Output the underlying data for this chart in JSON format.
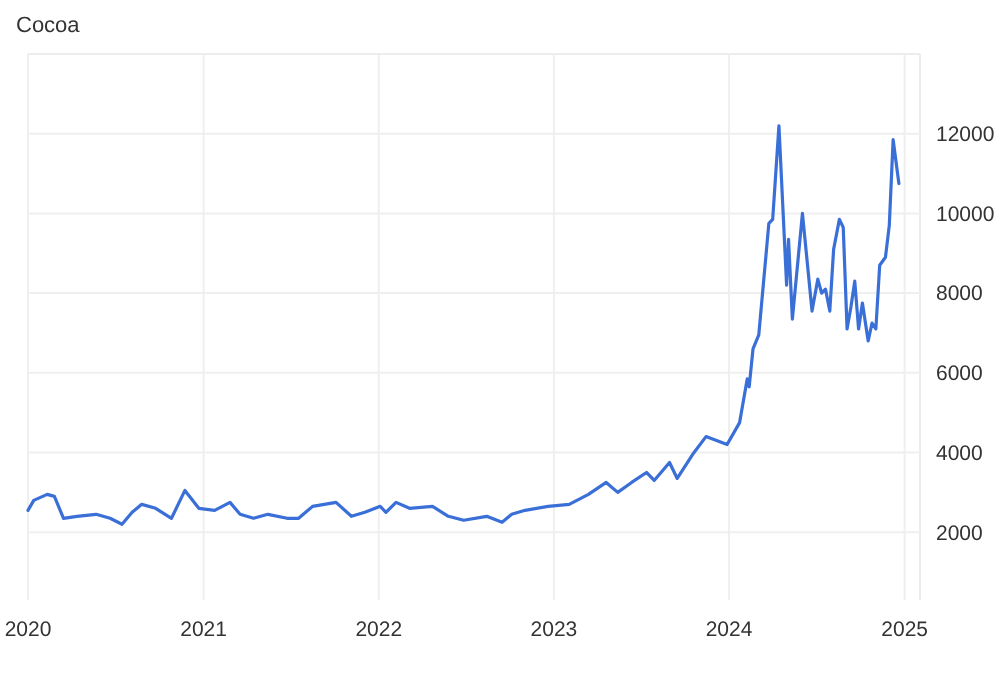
{
  "chart_data": {
    "type": "line",
    "title": "Cocoa",
    "x": [
      "2020-01-01",
      "2020-01-13",
      "2020-02-10",
      "2020-02-25",
      "2020-03-15",
      "2020-04-12",
      "2020-05-22",
      "2020-06-20",
      "2020-07-15",
      "2020-08-05",
      "2020-08-25",
      "2020-09-23",
      "2020-10-26",
      "2020-11-23",
      "2020-12-22",
      "2021-01-24",
      "2021-02-25",
      "2021-03-18",
      "2021-04-15",
      "2021-05-15",
      "2021-06-24",
      "2021-07-18",
      "2021-08-16",
      "2021-10-04",
      "2021-11-05",
      "2021-12-03",
      "2022-01-04",
      "2022-01-16",
      "2022-02-06",
      "2022-03-06",
      "2022-04-23",
      "2022-05-26",
      "2022-06-27",
      "2022-08-14",
      "2022-09-15",
      "2022-10-05",
      "2022-11-02",
      "2022-12-20",
      "2023-02-02",
      "2023-03-14",
      "2023-04-20",
      "2023-05-14",
      "2023-06-12",
      "2023-07-13",
      "2023-07-29",
      "2023-08-30",
      "2023-09-15",
      "2023-10-17",
      "2023-11-14",
      "2023-12-28",
      "2024-01-23",
      "2024-02-08",
      "2024-02-12",
      "2024-02-20",
      "2024-03-03",
      "2024-03-24",
      "2024-04-01",
      "2024-04-14",
      "2024-04-30",
      "2024-05-04",
      "2024-05-12",
      "2024-06-02",
      "2024-06-22",
      "2024-07-04",
      "2024-07-12",
      "2024-07-20",
      "2024-07-29",
      "2024-08-06",
      "2024-08-18",
      "2024-08-26",
      "2024-09-03",
      "2024-09-11",
      "2024-09-19",
      "2024-09-27",
      "2024-10-05",
      "2024-10-17",
      "2024-10-25",
      "2024-11-02",
      "2024-11-10",
      "2024-11-22",
      "2024-11-30",
      "2024-12-08",
      "2024-12-20"
    ],
    "series": [
      {
        "color": "#3a6fd8",
        "values": [
          2550,
          2800,
          2950,
          2900,
          2350,
          2400,
          2450,
          2350,
          2200,
          2500,
          2700,
          2600,
          2350,
          3050,
          2600,
          2550,
          2750,
          2450,
          2350,
          2450,
          2350,
          2350,
          2650,
          2750,
          2400,
          2500,
          2650,
          2500,
          2750,
          2600,
          2650,
          2400,
          2300,
          2400,
          2250,
          2450,
          2550,
          2650,
          2700,
          2950,
          3250,
          3000,
          3250,
          3500,
          3300,
          3750,
          3350,
          3950,
          4400,
          4200,
          4750,
          5850,
          5650,
          6600,
          6950,
          9750,
          9850,
          12200,
          8200,
          9350,
          7350,
          10000,
          7550,
          8350,
          8000,
          8100,
          7550,
          9100,
          9850,
          9650,
          7100,
          7650,
          8300,
          7100,
          7750,
          6800,
          7250,
          7100,
          8700,
          8900,
          9700,
          11850,
          10750
        ]
      }
    ],
    "xlim": [
      "2020-01-01",
      "2025-02-02"
    ],
    "xticks": [
      {
        "value": "2020-01-01",
        "label": "2020"
      },
      {
        "value": "2021-01-01",
        "label": "2021"
      },
      {
        "value": "2022-01-01",
        "label": "2022"
      },
      {
        "value": "2023-01-01",
        "label": "2023"
      },
      {
        "value": "2024-01-01",
        "label": "2024"
      },
      {
        "value": "2025-01-01",
        "label": "2025"
      }
    ],
    "ylim": [
      300,
      14000
    ],
    "yticks": [
      2000,
      4000,
      6000,
      8000,
      10000,
      12000
    ],
    "grid": true
  }
}
